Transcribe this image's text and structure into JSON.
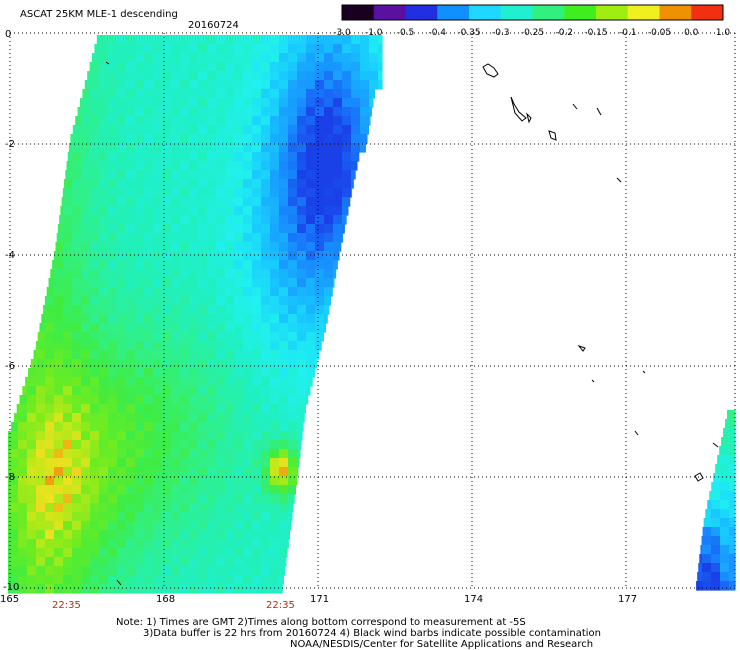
{
  "title": "ASCAT 25KM MLE-1 descending",
  "date": "20160724",
  "colorbar": {
    "labels": [
      "-3.0",
      "-1.0",
      "-0.5",
      "-0.4",
      "-0.35",
      "-0.3",
      "-0.25",
      "-0.2",
      "-0.15",
      "-0.1",
      "-0.05",
      "0.0",
      "1.0"
    ],
    "colors": [
      "#1a0020",
      "#5a10a0",
      "#2030e0",
      "#1090ff",
      "#20d8ff",
      "#20f0d0",
      "#30f080",
      "#40ee20",
      "#a0ee10",
      "#f0f020",
      "#f09000",
      "#f03010"
    ]
  },
  "axes": {
    "x_ticks": [
      "165",
      "168",
      "171",
      "174",
      "177"
    ],
    "y_ticks": [
      "0",
      "-2",
      "-4",
      "-6",
      "-8",
      "-10"
    ]
  },
  "swath_times": [
    "22:35",
    "22:35"
  ],
  "notes": [
    "Note: 1) Times are GMT 2)Times along bottom correspond to measurement at -5S",
    "3)Data buffer is 22 hrs from 20160724 4) Black wind barbs indicate possible contamination",
    "NOAA/NESDIS/Center for Satellite Applications and Research"
  ]
}
